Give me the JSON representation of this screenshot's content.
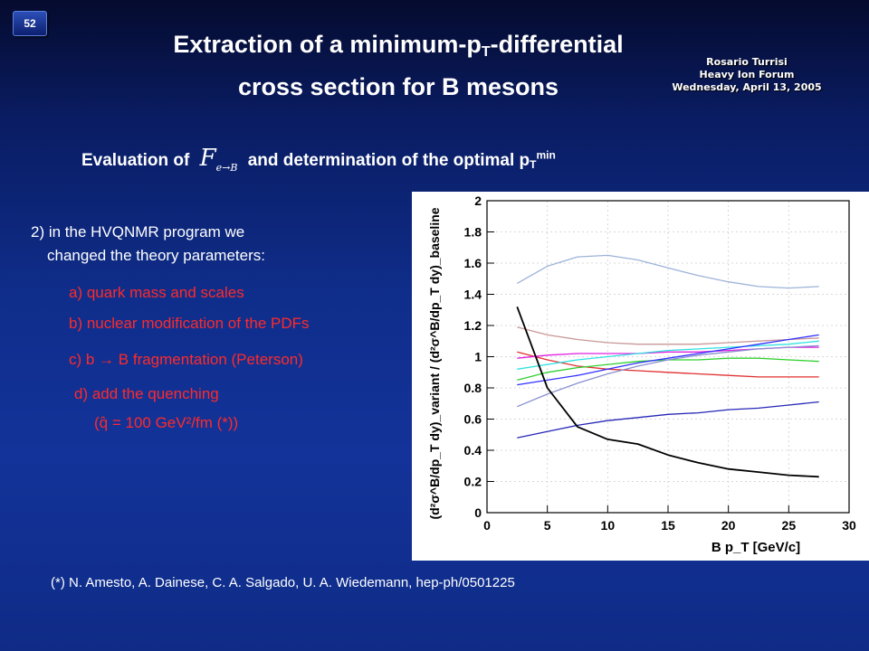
{
  "slide_number": "52",
  "title_line1_a": "Extraction of a minimum-p",
  "title_line1_sub": "T",
  "title_line1_b": "-differential",
  "title_line2": "cross section for B mesons",
  "author_name": "Rosario Turrisi",
  "event_name": "Heavy Ion Forum",
  "event_date": "Wednesday, April 13, 2005",
  "subtitle_a": "Evaluation of",
  "subtitle_symbol": "F",
  "subtitle_symbol_sub": "e→B",
  "subtitle_b": "and determination of the optimal p",
  "subtitle_sub": "T",
  "subtitle_sup": "min",
  "body_line1": "2) in the HVQNMR program we",
  "body_line2": "changed the theory parameters:",
  "item_a": "a) quark mass and scales",
  "item_b": "b) nuclear modification of the PDFs",
  "item_c": "c) b → B fragmentation (Peterson)",
  "item_d_line1": "d) add the quenching",
  "item_d_line2": "(q̂ = 100 GeV²/fm (*))",
  "footnote": "(*) N. Amesto, A. Dainese, C. A. Salgado, U. A. Wiedemann, hep-ph/0501225",
  "colors": {
    "item_text": "#ff2a2a",
    "title_text": "#ffffff"
  },
  "chart_data": {
    "type": "line",
    "xlabel": "B p_T [GeV/c]",
    "ylabel": "(d²σ^B/dp_T dy)_variant / (d²σ^B/dp_T dy)_baseline",
    "xlim": [
      0,
      30
    ],
    "ylim": [
      0,
      2
    ],
    "x_ticks": [
      0,
      5,
      10,
      15,
      20,
      25,
      30
    ],
    "y_ticks": [
      0,
      0.2,
      0.4,
      0.6,
      0.8,
      1,
      1.2,
      1.4,
      1.6,
      1.8,
      2
    ],
    "grid": true,
    "legend": "none",
    "x": [
      2.5,
      5,
      7.5,
      10,
      12.5,
      15,
      17.5,
      20,
      22.5,
      25,
      27.5
    ],
    "series": [
      {
        "color": "#9db3d9",
        "values": [
          1.47,
          1.58,
          1.64,
          1.65,
          1.62,
          1.57,
          1.52,
          1.48,
          1.45,
          1.44,
          1.45
        ]
      },
      {
        "color": "#c89898",
        "values": [
          1.19,
          1.14,
          1.11,
          1.09,
          1.08,
          1.08,
          1.08,
          1.09,
          1.1,
          1.11,
          1.12
        ]
      },
      {
        "color": "#e03030",
        "values": [
          1.03,
          0.98,
          0.94,
          0.92,
          0.91,
          0.9,
          0.89,
          0.88,
          0.87,
          0.87,
          0.87
        ]
      },
      {
        "color": "#e020e0",
        "values": [
          0.99,
          1.01,
          1.02,
          1.02,
          1.02,
          1.03,
          1.03,
          1.04,
          1.05,
          1.06,
          1.06
        ]
      },
      {
        "color": "#30e0e0",
        "values": [
          0.92,
          0.95,
          0.98,
          1.0,
          1.02,
          1.04,
          1.05,
          1.06,
          1.07,
          1.08,
          1.1
        ]
      },
      {
        "color": "#30d030",
        "values": [
          0.85,
          0.9,
          0.93,
          0.95,
          0.97,
          0.98,
          0.98,
          0.99,
          0.99,
          0.98,
          0.97
        ]
      },
      {
        "color": "#3030ff",
        "values": [
          0.82,
          0.85,
          0.88,
          0.92,
          0.96,
          0.99,
          1.02,
          1.05,
          1.08,
          1.11,
          1.14
        ]
      },
      {
        "color": "#8a8fd0",
        "values": [
          0.68,
          0.76,
          0.83,
          0.89,
          0.94,
          0.98,
          1.01,
          1.03,
          1.05,
          1.06,
          1.07
        ]
      },
      {
        "color": "#2626b8",
        "values": [
          0.48,
          0.52,
          0.56,
          0.59,
          0.61,
          0.63,
          0.64,
          0.66,
          0.67,
          0.69,
          0.71
        ]
      },
      {
        "color": "#000000",
        "values": [
          1.32,
          0.8,
          0.55,
          0.47,
          0.44,
          0.37,
          0.32,
          0.28,
          0.26,
          0.24,
          0.23
        ]
      }
    ]
  }
}
